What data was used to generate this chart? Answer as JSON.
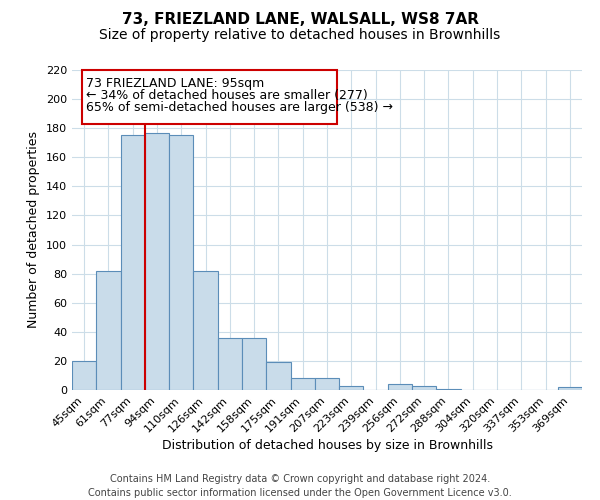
{
  "title": "73, FRIEZLAND LANE, WALSALL, WS8 7AR",
  "subtitle": "Size of property relative to detached houses in Brownhills",
  "xlabel": "Distribution of detached houses by size in Brownhills",
  "ylabel": "Number of detached properties",
  "bin_labels": [
    "45sqm",
    "61sqm",
    "77sqm",
    "94sqm",
    "110sqm",
    "126sqm",
    "142sqm",
    "158sqm",
    "175sqm",
    "191sqm",
    "207sqm",
    "223sqm",
    "239sqm",
    "256sqm",
    "272sqm",
    "288sqm",
    "304sqm",
    "320sqm",
    "337sqm",
    "353sqm",
    "369sqm"
  ],
  "bar_values": [
    20,
    82,
    175,
    177,
    175,
    82,
    36,
    36,
    19,
    8,
    8,
    3,
    0,
    4,
    3,
    1,
    0,
    0,
    0,
    0,
    2
  ],
  "bar_color": "#c9dcea",
  "bar_edge_color": "#5b8db8",
  "ylim": [
    0,
    220
  ],
  "yticks": [
    0,
    20,
    40,
    60,
    80,
    100,
    120,
    140,
    160,
    180,
    200,
    220
  ],
  "property_line_x": 3.0,
  "property_line_color": "#cc0000",
  "ann_line1": "73 FRIEZLAND LANE: 95sqm",
  "ann_line2": "← 34% of detached houses are smaller (277)",
  "ann_line3": "65% of semi-detached houses are larger (538) →",
  "footer_text": "Contains HM Land Registry data © Crown copyright and database right 2024.\nContains public sector information licensed under the Open Government Licence v3.0.",
  "background_color": "#ffffff",
  "grid_color": "#ccdde8",
  "title_fontsize": 11,
  "subtitle_fontsize": 10,
  "axis_label_fontsize": 9,
  "tick_fontsize": 8,
  "annotation_fontsize": 9,
  "footer_fontsize": 7
}
